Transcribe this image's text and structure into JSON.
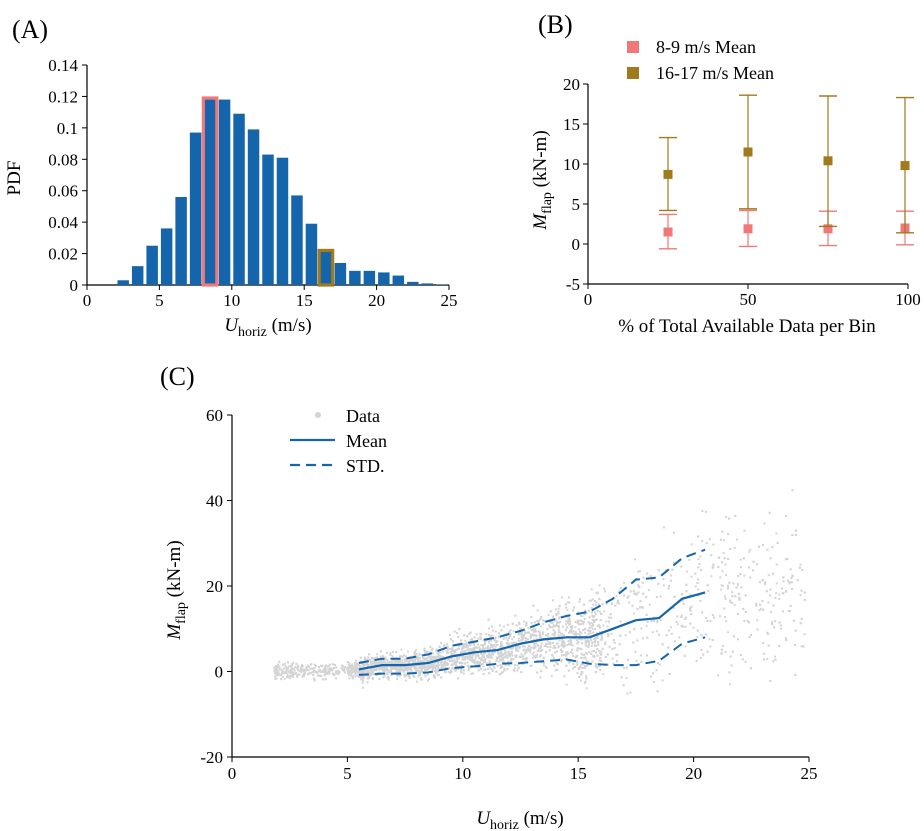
{
  "panels": {
    "a_label": "(A)",
    "b_label": "(B)",
    "c_label": "(C)"
  },
  "chart_data": [
    {
      "id": "A",
      "type": "bar",
      "xlabel_main": "U",
      "xlabel_sub": "horiz",
      "xlabel_unit": " (m/s)",
      "ylabel": "PDF",
      "xlim": [
        0,
        25
      ],
      "ylim": [
        0,
        0.14
      ],
      "xticks": [
        0,
        5,
        10,
        15,
        20,
        25
      ],
      "yticks": [
        0,
        0.02,
        0.04,
        0.06,
        0.08,
        0.1,
        0.12,
        0.14
      ],
      "ytick_labels": [
        "0",
        "0.02",
        "0.04",
        "0.06",
        "0.08",
        "0.1",
        "0.12",
        "0.14"
      ],
      "bin_width": 1,
      "bin_centers": [
        2.5,
        3.5,
        4.5,
        5.5,
        6.5,
        7.5,
        8.5,
        9.5,
        10.5,
        11.5,
        12.5,
        13.5,
        14.5,
        15.5,
        16.5,
        17.5,
        18.5,
        19.5,
        20.5,
        21.5,
        22.5,
        23.5,
        24.5
      ],
      "values": [
        0.003,
        0.012,
        0.025,
        0.036,
        0.056,
        0.097,
        0.118,
        0.118,
        0.109,
        0.099,
        0.083,
        0.081,
        0.057,
        0.039,
        0.021,
        0.014,
        0.009,
        0.009,
        0.008,
        0.006,
        0.002,
        0.001,
        0.0003
      ],
      "highlights": [
        {
          "bin_center": 8.5,
          "value": 0.119,
          "color": "#f07878"
        },
        {
          "bin_center": 16.5,
          "value": 0.022,
          "color": "#a07a1c"
        }
      ],
      "bar_color": "#1565ad"
    },
    {
      "id": "B",
      "type": "scatter",
      "xlabel": "% of Total Available Data per Bin",
      "ylabel_main": "M",
      "ylabel_sub": "flap",
      "ylabel_unit": " (kN-m)",
      "xlim": [
        0,
        100
      ],
      "ylim": [
        -5,
        20
      ],
      "xticks": [
        0,
        50,
        100
      ],
      "yticks": [
        -5,
        0,
        5,
        10,
        15,
        20
      ],
      "legend_position": "top-left",
      "series": [
        {
          "name": "8-9 m/s Mean",
          "color": "#f07878",
          "x": [
            25,
            50,
            75,
            100
          ],
          "y": [
            1.5,
            1.9,
            1.9,
            2.0
          ],
          "err_low": [
            -0.6,
            -0.3,
            -0.2,
            -0.1
          ],
          "err_high": [
            3.7,
            4.2,
            4.1,
            4.1
          ]
        },
        {
          "name": "16-17 m/s Mean",
          "color": "#a07a1c",
          "x": [
            25,
            50,
            75,
            100
          ],
          "y": [
            8.7,
            11.5,
            10.4,
            9.8
          ],
          "err_low": [
            4.2,
            4.4,
            2.2,
            1.4
          ],
          "err_high": [
            13.3,
            18.6,
            18.5,
            18.3
          ]
        }
      ]
    },
    {
      "id": "C",
      "type": "scatter",
      "xlabel_main": "U",
      "xlabel_sub": "horiz",
      "xlabel_unit": " (m/s)",
      "ylabel_main": "M",
      "ylabel_sub": "flap",
      "ylabel_unit": " (kN-m)",
      "xlim": [
        0,
        25
      ],
      "ylim": [
        -20,
        60
      ],
      "xticks": [
        0,
        5,
        10,
        15,
        20,
        25
      ],
      "yticks": [
        -20,
        0,
        20,
        40,
        60
      ],
      "legend_position": "top-left",
      "legend": [
        {
          "name": "Data",
          "style": "dot",
          "color": "#d4d4d4"
        },
        {
          "name": "Mean",
          "style": "solid",
          "color": "#1565ad"
        },
        {
          "name": "STD.",
          "style": "dashed",
          "color": "#1565ad"
        }
      ],
      "mean": {
        "x": [
          5.5,
          6.5,
          7.5,
          8.5,
          9.5,
          10.5,
          11.5,
          12.5,
          13.5,
          14.5,
          15.5,
          16.5,
          17.5,
          18.5,
          19.5,
          20.5
        ],
        "y": [
          0.5,
          1.5,
          1.5,
          2.0,
          3.5,
          4.5,
          5.0,
          6.5,
          7.5,
          8.0,
          8.0,
          10.0,
          12.0,
          12.5,
          17.0,
          18.5
        ]
      },
      "std_upper": {
        "x": [
          5.5,
          6.5,
          7.5,
          8.5,
          9.5,
          10.5,
          11.5,
          12.5,
          13.5,
          14.5,
          15.5,
          16.5,
          17.5,
          18.5,
          19.5,
          20.5
        ],
        "y": [
          2.0,
          3.0,
          3.0,
          4.0,
          6.0,
          7.0,
          8.0,
          9.5,
          11.5,
          13.0,
          14.0,
          17.0,
          21.5,
          22.0,
          26.5,
          28.5
        ]
      },
      "std_lower": {
        "x": [
          5.5,
          6.5,
          7.5,
          8.5,
          9.5,
          10.5,
          11.5,
          12.5,
          13.5,
          14.5,
          15.5,
          16.5,
          17.5,
          18.5,
          19.5,
          20.5
        ],
        "y": [
          -0.8,
          -0.5,
          -0.5,
          -0.2,
          0.8,
          1.2,
          1.8,
          2.0,
          2.4,
          2.8,
          1.8,
          1.5,
          1.5,
          2.5,
          6.5,
          8.0
        ]
      },
      "data_color": "#d4d4d4",
      "line_color": "#1565ad"
    }
  ]
}
